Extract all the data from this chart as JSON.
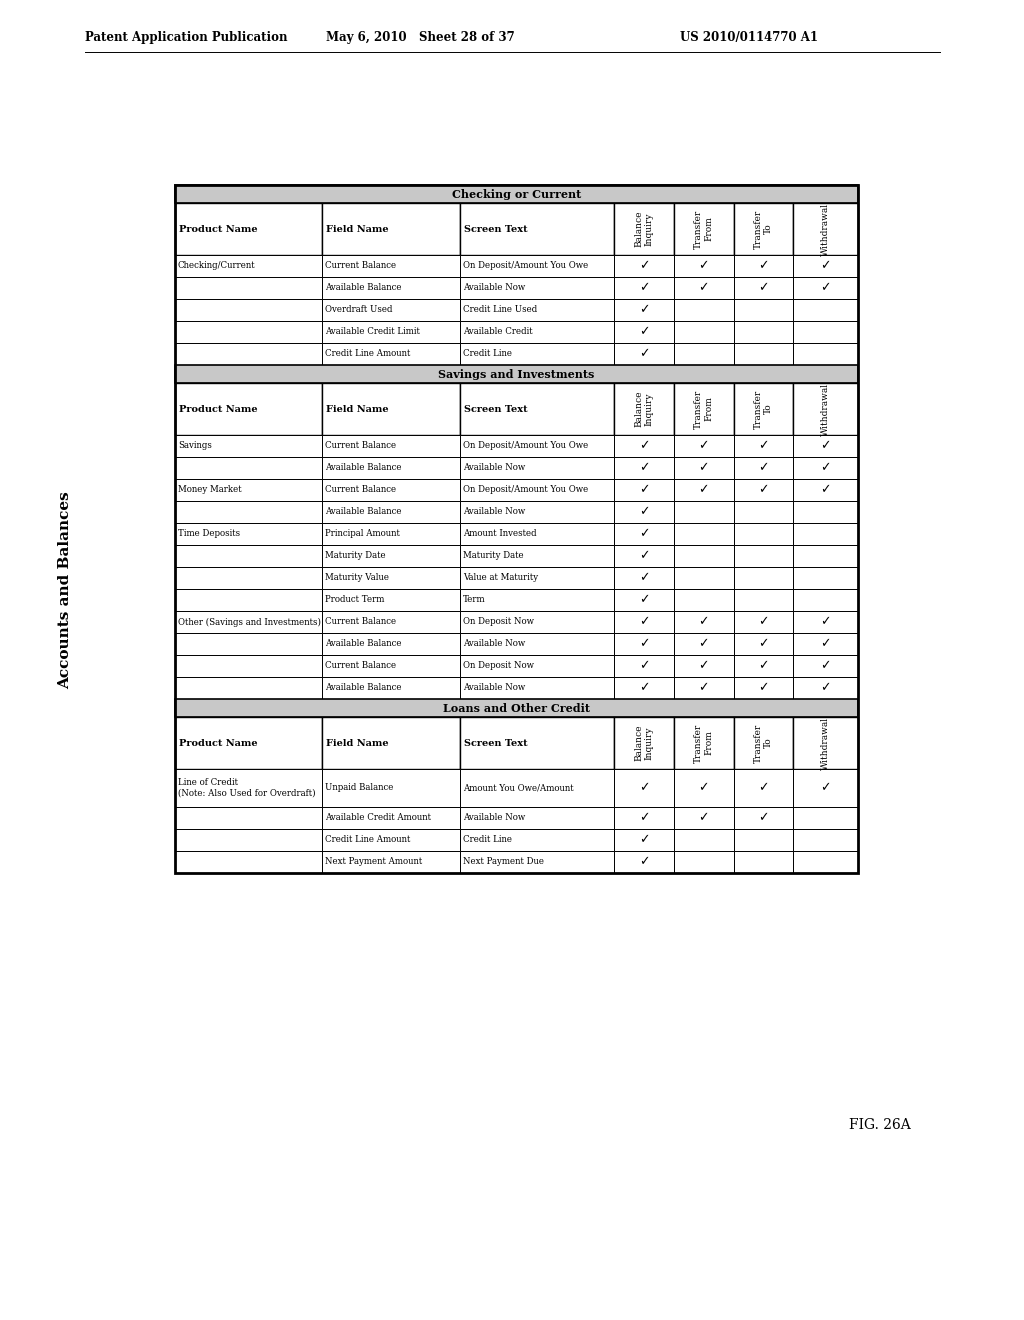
{
  "page_header_left": "Patent Application Publication",
  "page_header_mid": "May 6, 2010   Sheet 28 of 37",
  "page_header_right": "US 2010/0114770 A1",
  "left_title": "Accounts and Balances",
  "fig_label": "FIG. 26A",
  "check": "\\",
  "sections": [
    {
      "name": "Checking or Current",
      "col_headers": [
        "Product Name",
        "Field Name",
        "Screen Text",
        "Balance\nInquiry",
        "Transfer\nFrom",
        "Transfer\nTo",
        "Withdrawal"
      ],
      "rows": [
        [
          "Checking/Current",
          "Current Balance",
          "On Deposit/Amount You Owe",
          1,
          1,
          1,
          1
        ],
        [
          "",
          "Available Balance",
          "Available Now",
          1,
          1,
          1,
          1
        ],
        [
          "",
          "Overdraft Used",
          "Credit Line Used",
          1,
          0,
          0,
          0
        ],
        [
          "",
          "Available Credit Limit",
          "Available Credit",
          1,
          0,
          0,
          0
        ],
        [
          "",
          "Credit Line Amount",
          "Credit Line",
          1,
          0,
          0,
          0
        ]
      ]
    },
    {
      "name": "Savings and Investments",
      "col_headers": [
        "Product Name",
        "Field Name",
        "Screen Text",
        "Balance\nInquiry",
        "Transfer\nFrom",
        "Transfer\nTo",
        "Withdrawal"
      ],
      "rows": [
        [
          "Savings",
          "Current Balance",
          "On Deposit/Amount You Owe",
          1,
          1,
          1,
          1
        ],
        [
          "",
          "Available Balance",
          "Available Now",
          1,
          1,
          1,
          1
        ],
        [
          "Money Market",
          "Current Balance",
          "On Deposit/Amount You Owe",
          1,
          1,
          1,
          1
        ],
        [
          "",
          "Available Balance",
          "Available Now",
          1,
          0,
          0,
          0
        ],
        [
          "Time Deposits",
          "Principal Amount",
          "Amount Invested",
          1,
          0,
          0,
          0
        ],
        [
          "",
          "Maturity Date",
          "Maturity Date",
          1,
          0,
          0,
          0
        ],
        [
          "",
          "Maturity Value",
          "Value at Maturity",
          1,
          0,
          0,
          0
        ],
        [
          "",
          "Product Term",
          "Term",
          1,
          0,
          0,
          0
        ],
        [
          "Other (Savings and Investments)",
          "Current Balance",
          "On Deposit Now",
          1,
          1,
          1,
          1
        ],
        [
          "",
          "Available Balance",
          "Available Now",
          1,
          1,
          1,
          1
        ],
        [
          "",
          "Current Balance",
          "On Deposit Now",
          1,
          1,
          1,
          1
        ],
        [
          "",
          "Available Balance",
          "Available Now",
          1,
          1,
          1,
          1
        ]
      ]
    },
    {
      "name": "Loans and Other Credit",
      "col_headers": [
        "Product Name",
        "Field Name",
        "Screen Text",
        "Balance\nInquiry",
        "Transfer\nFrom",
        "Transfer\nTo",
        "Withdrawal"
      ],
      "rows": [
        [
          "Line of Credit\n(Note: Also Used for Overdraft)",
          "Unpaid Balance",
          "Amount You Owe/Amount",
          1,
          1,
          1,
          1
        ],
        [
          "",
          "Available Credit Amount",
          "Available Now",
          1,
          1,
          1,
          0
        ],
        [
          "",
          "Credit Line Amount",
          "Credit Line",
          1,
          0,
          0,
          0
        ],
        [
          "",
          "Next Payment Amount",
          "Next Payment Due",
          1,
          0,
          0,
          0
        ]
      ]
    }
  ],
  "bg_color": "#ffffff",
  "border_color": "#000000",
  "section_header_bg": "#d0d0d0"
}
